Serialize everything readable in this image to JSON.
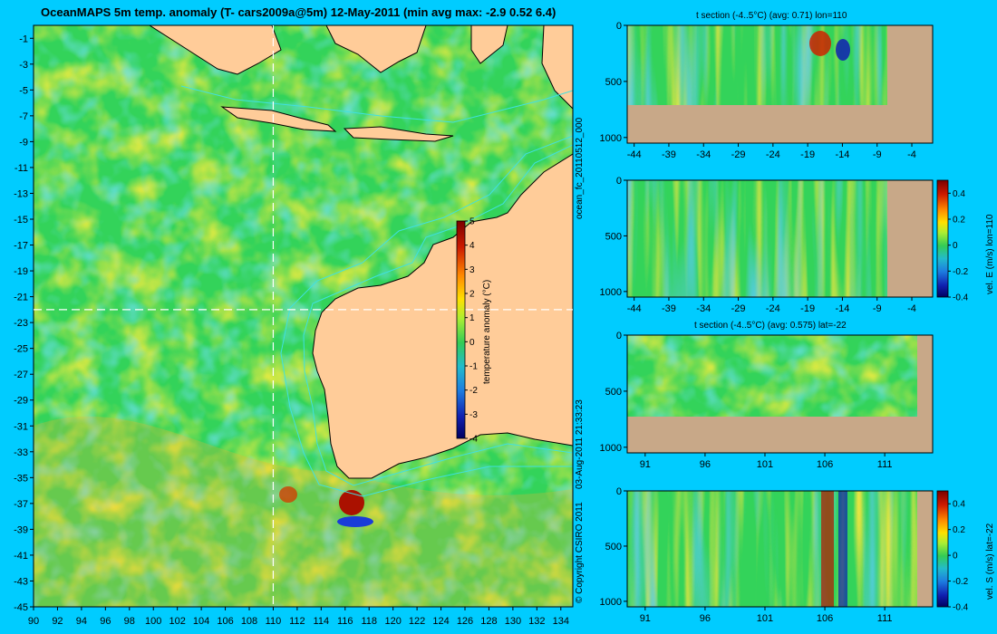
{
  "title": "OceanMAPS 5m temp. anomaly (T- cars2009a@5m) 12-May-2011 (min avg max: -2.9 0.52 6.4)",
  "side_labels": {
    "run_id": "ocean_fc_20110512_000",
    "timestamp": "03-Aug-2011 21:33:23",
    "copyright": "© Copyright CSIRO 2011"
  },
  "colors": {
    "background": "#00ccff",
    "land": "#ffcc99",
    "section_land": "#c8a888",
    "coast": "#000000",
    "bathymetry": "#40e0e0",
    "guide_lines": "#ffffff"
  },
  "chart_data": [
    {
      "type": "heatmap",
      "id": "map",
      "title": "OceanMAPS 5m temp. anomaly (T- cars2009a@5m) 12-May-2011 (min avg max: -2.9 0.52 6.4)",
      "x_ticks": [
        90,
        92,
        94,
        96,
        98,
        100,
        102,
        104,
        106,
        108,
        110,
        112,
        114,
        116,
        118,
        120,
        122,
        124,
        126,
        128,
        130,
        132,
        134
      ],
      "y_ticks": [
        -1,
        -3,
        -5,
        -7,
        -9,
        -11,
        -13,
        -15,
        -17,
        -19,
        -21,
        -23,
        -25,
        -27,
        -29,
        -31,
        -33,
        -35,
        -37,
        -39,
        -41,
        -43,
        -45
      ],
      "xlim": [
        90,
        135
      ],
      "ylim": [
        -45,
        0
      ],
      "guide_lon": 110,
      "guide_lat": -22,
      "colorbar": {
        "label": "temperature anomaly (°C)",
        "range": [
          -4,
          5
        ],
        "ticks": [
          "5",
          "4",
          "3",
          "2",
          "1",
          "0",
          "-1",
          "-2",
          "-3",
          "-4"
        ]
      }
    },
    {
      "type": "heatmap",
      "id": "t-lon",
      "title": "t section (-4..5°C) (avg: 0.71) lon=110",
      "x_ticks": [
        "-44",
        "-39",
        "-34",
        "-29",
        "-24",
        "-19",
        "-14",
        "-9",
        "-4"
      ],
      "y_ticks": [
        "0",
        "500",
        "1000"
      ],
      "xlim": [
        -45,
        -1
      ],
      "ylim": [
        1050,
        0
      ]
    },
    {
      "type": "heatmap",
      "id": "v-lon",
      "title": "",
      "x_ticks": [
        "-44",
        "-39",
        "-34",
        "-29",
        "-24",
        "-19",
        "-14",
        "-9",
        "-4"
      ],
      "y_ticks": [
        "0",
        "500",
        "1000"
      ],
      "xlim": [
        -45,
        -1
      ],
      "ylim": [
        1050,
        0
      ],
      "colorbar": {
        "label": "vel. E (m/s) lon=110",
        "range": [
          -0.4,
          0.5
        ],
        "ticks": [
          "0.4",
          "0.2",
          "0",
          "-0.2",
          "-0.4"
        ]
      }
    },
    {
      "type": "heatmap",
      "id": "t-lat",
      "title": "t section (-4..5°C) (avg: 0.575) lat=-22",
      "x_ticks": [
        "91",
        "96",
        "101",
        "106",
        "111"
      ],
      "y_ticks": [
        "0",
        "500",
        "1000"
      ],
      "xlim": [
        89.5,
        115
      ],
      "ylim": [
        1050,
        0
      ]
    },
    {
      "type": "heatmap",
      "id": "v-lat",
      "title": "",
      "x_ticks": [
        "91",
        "96",
        "101",
        "106",
        "111"
      ],
      "y_ticks": [
        "0",
        "500",
        "1000"
      ],
      "xlim": [
        89.5,
        115
      ],
      "ylim": [
        1050,
        0
      ],
      "colorbar": {
        "label": "vel. S (m/s) lat=-22",
        "range": [
          -0.4,
          0.5
        ],
        "ticks": [
          "0.4",
          "0.2",
          "0",
          "-0.2",
          "-0.4"
        ]
      }
    }
  ]
}
